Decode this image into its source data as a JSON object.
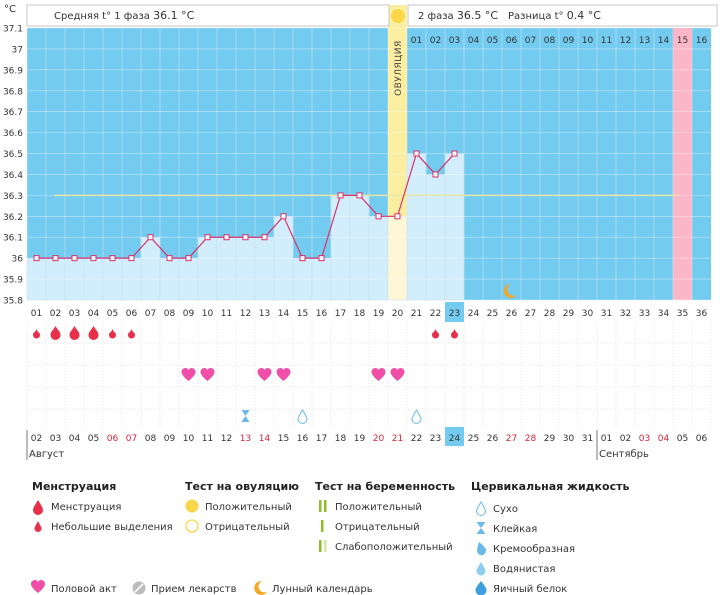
{
  "header": {
    "unit": "°C",
    "phase1_label": "Средняя t° 1 фаза",
    "phase1_value": "36.1 °C",
    "phase2_label": "2 фаза",
    "phase2_value": "36.5 °C",
    "diff_label": "Разница t°",
    "diff_value": "0.4 °C",
    "ovulation_label": "ОВУЛЯЦИЯ"
  },
  "colors": {
    "blue_bg": "#73cbf0",
    "bar_fill": "#d2edfb",
    "line": "#d8326a",
    "ovulation": "#fceea0",
    "today": "#fbb6c8",
    "coverline": "#e9e8a8"
  },
  "chart_data": {
    "type": "line",
    "title": "",
    "xlabel": "",
    "ylabel": "°C",
    "ylim": [
      35.8,
      37.1
    ],
    "yticks": [
      "35.8",
      "35.9",
      "36",
      "36.1",
      "36.2",
      "36.3",
      "36.4",
      "36.5",
      "36.6",
      "36.7",
      "36.8",
      "36.9",
      "37",
      "37.1"
    ],
    "cycle_days": [
      "01",
      "02",
      "03",
      "04",
      "05",
      "06",
      "07",
      "08",
      "09",
      "10",
      "11",
      "12",
      "13",
      "14",
      "15",
      "16",
      "17",
      "18",
      "19",
      "20",
      "21",
      "22",
      "23",
      "24",
      "25",
      "26",
      "27",
      "28",
      "29",
      "30",
      "31",
      "32",
      "33",
      "34",
      "35",
      "36"
    ],
    "temperature": [
      36.0,
      36.0,
      36.0,
      36.0,
      36.0,
      36.0,
      36.1,
      36.0,
      36.0,
      36.1,
      36.1,
      36.1,
      36.1,
      36.2,
      36.0,
      36.0,
      36.3,
      36.3,
      36.2,
      36.2,
      36.5,
      36.4,
      36.5
    ],
    "coverline": 36.3,
    "ovulation_day": 20,
    "today_cycle_day": 23,
    "forecast_period_day": 35,
    "phase2_day_labels": [
      "01",
      "02",
      "03",
      "04",
      "05",
      "06",
      "07",
      "08",
      "09",
      "10",
      "11",
      "12",
      "13",
      "14",
      "15",
      "16"
    ],
    "phase2_highlight_index": 14,
    "moon_day": 26,
    "calendar_dates": [
      "02",
      "03",
      "04",
      "05",
      "06",
      "07",
      "08",
      "09",
      "10",
      "11",
      "12",
      "13",
      "14",
      "15",
      "16",
      "17",
      "18",
      "19",
      "20",
      "21",
      "22",
      "23",
      "24",
      "25",
      "26",
      "27",
      "28",
      "29",
      "30",
      "31",
      "01",
      "02",
      "03",
      "04",
      "05",
      "06"
    ],
    "weekend_date_indexes": [
      4,
      5,
      11,
      12,
      18,
      19,
      25,
      26,
      32,
      33
    ],
    "today_date_index": 22,
    "month_start_indexes": [
      0,
      30
    ],
    "months": [
      "Август",
      "Сентябрь"
    ],
    "menstruation": [
      {
        "day": 1,
        "size": "small"
      },
      {
        "day": 2,
        "size": "large"
      },
      {
        "day": 3,
        "size": "large"
      },
      {
        "day": 4,
        "size": "large"
      },
      {
        "day": 5,
        "size": "small"
      },
      {
        "day": 6,
        "size": "small"
      },
      {
        "day": 22,
        "size": "small"
      },
      {
        "day": 23,
        "size": "small"
      }
    ],
    "intercourse_days": [
      9,
      10,
      13,
      14,
      19,
      20
    ],
    "cervical_fluid": [
      {
        "day": 12,
        "type": "sticky"
      },
      {
        "day": 15,
        "type": "dry"
      },
      {
        "day": 21,
        "type": "dry"
      }
    ]
  },
  "legend": {
    "menstruation_title": "Менструация",
    "menstruation_heavy": "Менструация",
    "menstruation_light": "Небольшие выделения",
    "ovulation_test_title": "Тест на овуляцию",
    "ovulation_positive": "Положительный",
    "ovulation_negative": "Отрицательный",
    "pregnancy_test_title": "Тест на беременность",
    "pregnancy_positive": "Положительный",
    "pregnancy_negative": "Отрицательный",
    "pregnancy_weak": "Слабоположительный",
    "cervical_title": "Цервикальная жидкость",
    "cervical_dry": "Сухо",
    "cervical_sticky": "Клейкая",
    "cervical_creamy": "Кремообразная",
    "cervical_watery": "Водянистая",
    "cervical_eggwhite": "Яичный белок",
    "intercourse": "Половой акт",
    "medication": "Прием лекарств",
    "lunar": "Лунный календарь"
  }
}
